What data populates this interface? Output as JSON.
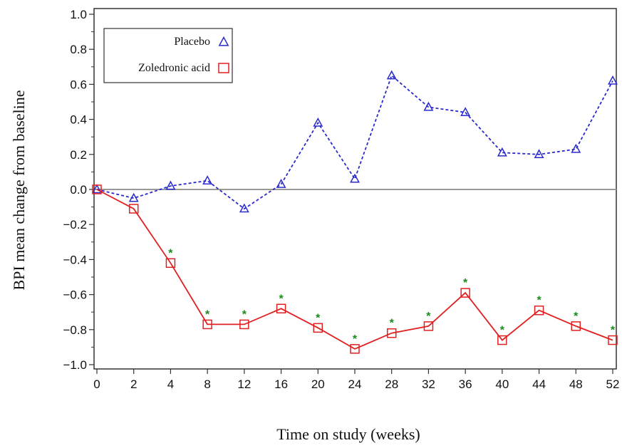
{
  "chart_data": {
    "type": "line",
    "title": "",
    "xlabel": "Time on study (weeks)",
    "ylabel": "BPI mean change from baseline",
    "categories": [
      "0",
      "2",
      "4",
      "8",
      "12",
      "16",
      "20",
      "24",
      "28",
      "32",
      "36",
      "40",
      "44",
      "48",
      "52"
    ],
    "ylim": [
      -1.0,
      1.0
    ],
    "yticks": [
      "1.0",
      "0.8",
      "0.6",
      "0.4",
      "0.2",
      "0.0",
      "−0.2",
      "−0.4",
      "−0.6",
      "−0.8",
      "−1.0"
    ],
    "ytick_values": [
      1.0,
      0.8,
      0.6,
      0.4,
      0.2,
      0.0,
      -0.2,
      -0.4,
      -0.6,
      -0.8,
      -1.0
    ],
    "reference_line": 0.0,
    "legend_position": "top-left",
    "series": [
      {
        "name": "Placebo",
        "color": "#2a2acc",
        "line_style": "dashed",
        "marker": "triangle",
        "values": [
          0.0,
          -0.05,
          0.02,
          0.05,
          -0.11,
          0.03,
          0.38,
          0.06,
          0.65,
          0.47,
          0.44,
          0.21,
          0.2,
          0.23,
          0.62
        ]
      },
      {
        "name": "Zoledronic acid",
        "color": "#e02020",
        "line_style": "solid",
        "marker": "square",
        "values": [
          0.0,
          -0.11,
          -0.42,
          -0.77,
          -0.77,
          -0.68,
          -0.79,
          -0.91,
          -0.82,
          -0.78,
          -0.59,
          -0.86,
          -0.69,
          -0.78,
          -0.86
        ]
      }
    ],
    "significance_marker": "*",
    "significance_color": "#1a8c1a",
    "significant_points": [
      false,
      false,
      true,
      true,
      true,
      true,
      true,
      true,
      true,
      true,
      true,
      true,
      true,
      true,
      true
    ]
  }
}
